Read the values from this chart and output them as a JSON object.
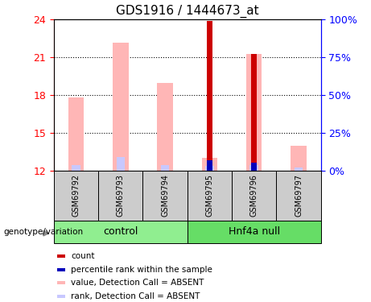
{
  "title": "GDS1916 / 1444673_at",
  "samples": [
    "GSM69792",
    "GSM69793",
    "GSM69794",
    "GSM69795",
    "GSM69796",
    "GSM69797"
  ],
  "ylim": [
    12,
    24
  ],
  "yticks_left": [
    12,
    15,
    18,
    21,
    24
  ],
  "pink_value_tops": [
    17.8,
    22.2,
    19.0,
    13.0,
    21.3,
    14.0
  ],
  "pink_rank_tops": [
    12.45,
    13.05,
    12.45,
    12.35,
    12.45,
    12.25
  ],
  "red_count_tops": [
    12.0,
    12.0,
    12.0,
    23.9,
    21.3,
    12.0
  ],
  "blue_rank_tops": [
    12.0,
    12.0,
    12.0,
    12.85,
    12.65,
    12.0
  ],
  "has_red": [
    false,
    false,
    false,
    true,
    true,
    false
  ],
  "has_blue": [
    false,
    false,
    false,
    true,
    true,
    false
  ],
  "control_color": "#90EE90",
  "hnf4a_color": "#66DD66",
  "pink_color": "#FFB6B6",
  "light_blue_color": "#C8C8FF",
  "red_color": "#CC0000",
  "blue_color": "#0000BB",
  "bar_width": 0.35,
  "red_bar_width": 0.12,
  "blue_bar_width": 0.12,
  "legend_items": [
    {
      "color": "#CC0000",
      "label": "count"
    },
    {
      "color": "#0000BB",
      "label": "percentile rank within the sample"
    },
    {
      "color": "#FFB6B6",
      "label": "value, Detection Call = ABSENT"
    },
    {
      "color": "#C8C8FF",
      "label": "rank, Detection Call = ABSENT"
    }
  ]
}
